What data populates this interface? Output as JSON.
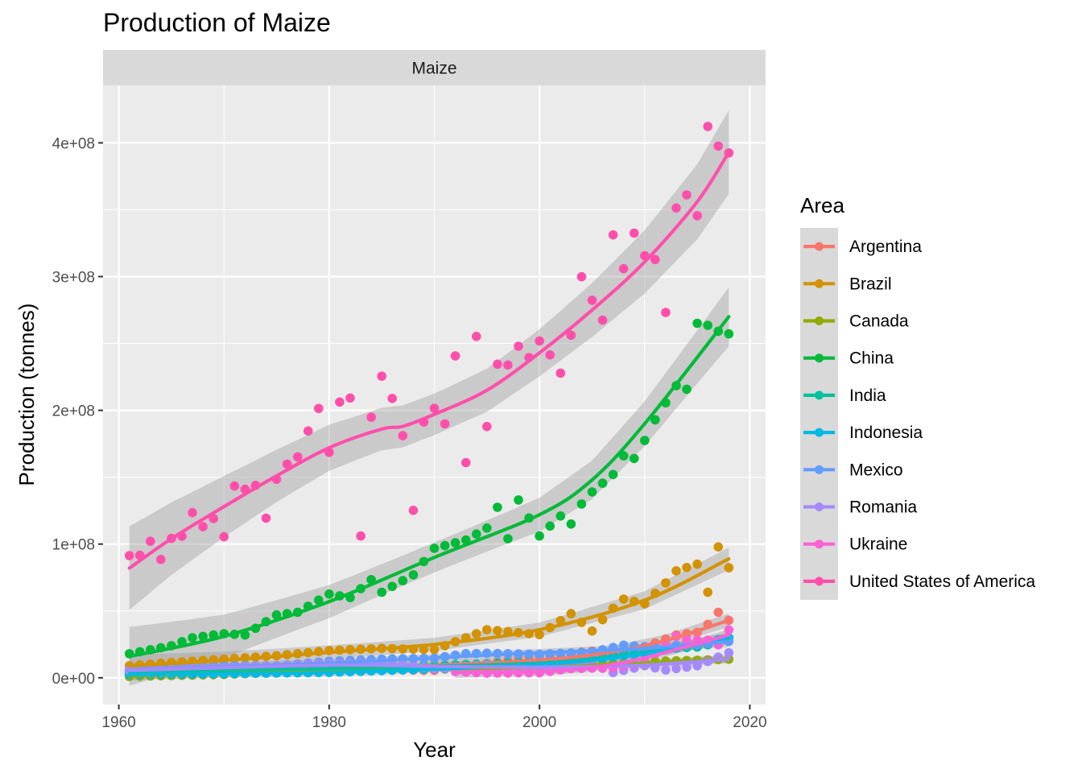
{
  "chart_data": {
    "type": "scatter",
    "title": "Production of Maize",
    "facet_label": "Maize",
    "xlabel": "Year",
    "ylabel": "Production (tonnes)",
    "xlim": [
      1958.5,
      2021.5
    ],
    "ylim": [
      -20000000,
      443000000
    ],
    "x_ticks": [
      1960,
      1980,
      2000,
      2020
    ],
    "x_tick_labels": [
      "1960",
      "1980",
      "2000",
      "2020"
    ],
    "y_ticks": [
      0,
      100000000,
      200000000,
      300000000,
      400000000
    ],
    "y_tick_labels": [
      "0e+00",
      "1e+08",
      "2e+08",
      "3e+08",
      "4e+08"
    ],
    "grid": true,
    "smoothing": "loess with confidence band",
    "legend": {
      "title": "Area",
      "position": "right"
    },
    "series": [
      {
        "name": "Argentina",
        "color": "#F8766D",
        "anchors": [
          [
            1961,
            5000000.0
          ],
          [
            1970,
            9500000.0
          ],
          [
            1980,
            6500000.0
          ],
          [
            1990,
            5500000.0
          ],
          [
            2000,
            16000000.0
          ],
          [
            2005,
            20000000.0
          ],
          [
            2010,
            23000000.0
          ],
          [
            2013,
            32000000.0
          ],
          [
            2015,
            34000000.0
          ],
          [
            2016,
            40000000.0
          ],
          [
            2017,
            49000000.0
          ],
          [
            2018,
            43000000.0
          ]
        ],
        "trend": [
          [
            1961,
            6000000.0
          ],
          [
            1980,
            7000000.0
          ],
          [
            1995,
            11000000.0
          ],
          [
            2005,
            17000000.0
          ],
          [
            2012,
            28000000.0
          ],
          [
            2018,
            43000000.0
          ]
        ]
      },
      {
        "name": "Brazil",
        "color": "#D39200",
        "anchors": [
          [
            1961,
            9000000.0
          ],
          [
            1965,
            11500000.0
          ],
          [
            1970,
            14000000.0
          ],
          [
            1975,
            16500000.0
          ],
          [
            1980,
            20400000.0
          ],
          [
            1985,
            22000000.0
          ],
          [
            1990,
            21000000.0
          ],
          [
            1993,
            30000000.0
          ],
          [
            1995,
            36000000.0
          ],
          [
            2000,
            32300000.0
          ],
          [
            2003,
            48000000.0
          ],
          [
            2005,
            35000000.0
          ],
          [
            2007,
            52000000.0
          ],
          [
            2008,
            58900000.0
          ],
          [
            2010,
            55400000.0
          ],
          [
            2012,
            71000000.0
          ],
          [
            2013,
            80000000.0
          ],
          [
            2015,
            85000000.0
          ],
          [
            2016,
            64000000.0
          ],
          [
            2017,
            97900000.0
          ],
          [
            2018,
            82300000.0
          ]
        ],
        "trend": [
          [
            1961,
            9000000.0
          ],
          [
            1970,
            13000000.0
          ],
          [
            1980,
            19000000.0
          ],
          [
            1990,
            25000000.0
          ],
          [
            2000,
            36000000.0
          ],
          [
            2010,
            58000000.0
          ],
          [
            2018,
            89000000.0
          ]
        ]
      },
      {
        "name": "Canada",
        "color": "#93AA00",
        "anchors": [
          [
            1961,
            1000000.0
          ],
          [
            1970,
            2500000.0
          ],
          [
            1980,
            5500000.0
          ],
          [
            1990,
            7000000.0
          ],
          [
            2000,
            7000000.0
          ],
          [
            2010,
            12000000.0
          ],
          [
            2018,
            13900000.0
          ]
        ],
        "trend": [
          [
            1961,
            1500000.0
          ],
          [
            1980,
            5500000.0
          ],
          [
            2000,
            8000000.0
          ],
          [
            2018,
            14000000.0
          ]
        ]
      },
      {
        "name": "China",
        "color": "#00BA38",
        "anchors": [
          [
            1961,
            18000000.0
          ],
          [
            1963,
            21000000.0
          ],
          [
            1965,
            24000000.0
          ],
          [
            1967,
            30000000.0
          ],
          [
            1970,
            33000000.0
          ],
          [
            1972,
            32000000.0
          ],
          [
            1975,
            47000000.0
          ],
          [
            1977,
            49000000.0
          ],
          [
            1980,
            62600000.0
          ],
          [
            1982,
            60000000.0
          ],
          [
            1984,
            73400000.0
          ],
          [
            1985,
            64000000.0
          ],
          [
            1988,
            77000000.0
          ],
          [
            1990,
            96800000.0
          ],
          [
            1993,
            103000000.0
          ],
          [
            1995,
            112000000.0
          ],
          [
            1996,
            127500000.0
          ],
          [
            1997,
            104000000.0
          ],
          [
            1998,
            133000000.0
          ],
          [
            2000,
            106000000.0
          ],
          [
            2002,
            121000000.0
          ],
          [
            2003,
            115000000.0
          ],
          [
            2004,
            130000000.0
          ],
          [
            2005,
            139000000.0
          ],
          [
            2007,
            152000000.0
          ],
          [
            2008,
            166000000.0
          ],
          [
            2009,
            164000000.0
          ],
          [
            2010,
            177500000.0
          ],
          [
            2011,
            192900000.0
          ],
          [
            2012,
            205600000.0
          ],
          [
            2013,
            218500000.0
          ],
          [
            2014,
            215800000.0
          ],
          [
            2015,
            265100000.0
          ],
          [
            2016,
            263600000.0
          ],
          [
            2017,
            259100000.0
          ],
          [
            2018,
            257200000.0
          ]
        ],
        "trend": [
          [
            1961,
            16000000.0
          ],
          [
            1970,
            31000000.0
          ],
          [
            1980,
            57000000.0
          ],
          [
            1990,
            90000000.0
          ],
          [
            2000,
            122000000.0
          ],
          [
            2005,
            148000000.0
          ],
          [
            2010,
            190000000.0
          ],
          [
            2018,
            270000000.0
          ]
        ]
      },
      {
        "name": "India",
        "color": "#00C19F",
        "anchors": [
          [
            1961,
            4000000.0
          ],
          [
            1970,
            7000000.0
          ],
          [
            1980,
            7000000.0
          ],
          [
            1990,
            9000000.0
          ],
          [
            2000,
            12000000.0
          ],
          [
            2010,
            21000000.0
          ],
          [
            2015,
            23000000.0
          ],
          [
            2018,
            28000000.0
          ]
        ],
        "trend": [
          [
            1961,
            4500000.0
          ],
          [
            1980,
            7000000.0
          ],
          [
            2000,
            11000000.0
          ],
          [
            2010,
            19000000.0
          ],
          [
            2018,
            29000000.0
          ]
        ]
      },
      {
        "name": "Indonesia",
        "color": "#00B9E3",
        "anchors": [
          [
            1961,
            2500000.0
          ],
          [
            1970,
            3000000.0
          ],
          [
            1980,
            4000000.0
          ],
          [
            1990,
            6700000.0
          ],
          [
            2000,
            9700000.0
          ],
          [
            2010,
            18300000.0
          ],
          [
            2018,
            30000000.0
          ]
        ],
        "trend": [
          [
            1961,
            2500000.0
          ],
          [
            1980,
            4000000.0
          ],
          [
            2000,
            10000000.0
          ],
          [
            2010,
            18000000.0
          ],
          [
            2018,
            30000000.0
          ]
        ]
      },
      {
        "name": "Mexico",
        "color": "#619CFF",
        "anchors": [
          [
            1961,
            6000000.0
          ],
          [
            1965,
            8000000.0
          ],
          [
            1970,
            9000000.0
          ],
          [
            1975,
            9000000.0
          ],
          [
            1980,
            12400000.0
          ],
          [
            1985,
            14000000.0
          ],
          [
            1990,
            14600000.0
          ],
          [
            1993,
            18100000.0
          ],
          [
            1995,
            18400000.0
          ],
          [
            2000,
            17600000.0
          ],
          [
            2005,
            19300000.0
          ],
          [
            2008,
            24400000.0
          ],
          [
            2010,
            23300000.0
          ],
          [
            2015,
            24700000.0
          ],
          [
            2018,
            27200000.0
          ]
        ],
        "trend": [
          [
            1961,
            6000000.0
          ],
          [
            1980,
            11000000.0
          ],
          [
            1995,
            17000000.0
          ],
          [
            2010,
            22000000.0
          ],
          [
            2018,
            27000000.0
          ]
        ]
      },
      {
        "name": "Romania",
        "color": "#A58AFF",
        "anchors": [
          [
            1961,
            5500000.0
          ],
          [
            1970,
            7500000.0
          ],
          [
            1980,
            11000000.0
          ],
          [
            1985,
            11000000.0
          ],
          [
            1990,
            6800000.0
          ],
          [
            1995,
            9900000.0
          ],
          [
            2000,
            4900000.0
          ],
          [
            2005,
            10400000.0
          ],
          [
            2007,
            3900000.0
          ],
          [
            2010,
            9000000.0
          ],
          [
            2012,
            5900000.0
          ],
          [
            2015,
            9000000.0
          ],
          [
            2018,
            18700000.0
          ]
        ],
        "trend": [
          [
            1961,
            5500000.0
          ],
          [
            1980,
            9500000.0
          ],
          [
            1990,
            8500000.0
          ],
          [
            2000,
            8000000.0
          ],
          [
            2010,
            9500000.0
          ],
          [
            2018,
            14000000.0
          ]
        ]
      },
      {
        "name": "Ukraine",
        "color": "#FB61D7",
        "anchors": [
          [
            1992,
            4700000.0
          ],
          [
            1995,
            3400000.0
          ],
          [
            2000,
            3800000.0
          ],
          [
            2003,
            6900000.0
          ],
          [
            2005,
            7200000.0
          ],
          [
            2007,
            7400000.0
          ],
          [
            2010,
            11900000.0
          ],
          [
            2013,
            30900000.0
          ],
          [
            2014,
            28500000.0
          ],
          [
            2016,
            28100000.0
          ],
          [
            2017,
            24700000.0
          ],
          [
            2018,
            35800000.0
          ]
        ],
        "trend": [
          [
            1992,
            4000000.0
          ],
          [
            2000,
            4500000.0
          ],
          [
            2005,
            7500000.0
          ],
          [
            2010,
            15000000.0
          ],
          [
            2018,
            32000000.0
          ]
        ]
      },
      {
        "name": "United States of America",
        "color": "#FF4FAB",
        "points": [
          [
            1961,
            91400000.0
          ],
          [
            1962,
            91600000.0
          ],
          [
            1963,
            102100000.0
          ],
          [
            1964,
            88500000.0
          ],
          [
            1965,
            104200000.0
          ],
          [
            1966,
            105900000.0
          ],
          [
            1967,
            123500000.0
          ],
          [
            1968,
            113000000.0
          ],
          [
            1969,
            119100000.0
          ],
          [
            1970,
            105500000.0
          ],
          [
            1971,
            143400000.0
          ],
          [
            1972,
            141000000.0
          ],
          [
            1973,
            143900000.0
          ],
          [
            1974,
            119400000.0
          ],
          [
            1975,
            148400000.0
          ],
          [
            1976,
            159800000.0
          ],
          [
            1977,
            165200000.0
          ],
          [
            1978,
            184600000.0
          ],
          [
            1979,
            201400000.0
          ],
          [
            1980,
            168600000.0
          ],
          [
            1981,
            206200000.0
          ],
          [
            1982,
            209200000.0
          ],
          [
            1983,
            106000000.0
          ],
          [
            1984,
            194900000.0
          ],
          [
            1985,
            225500000.0
          ],
          [
            1986,
            208900000.0
          ],
          [
            1987,
            181100000.0
          ],
          [
            1988,
            125200000.0
          ],
          [
            1989,
            191300000.0
          ],
          [
            1990,
            201500000.0
          ],
          [
            1991,
            189900000.0
          ],
          [
            1992,
            240700000.0
          ],
          [
            1993,
            160900000.0
          ],
          [
            1994,
            255300000.0
          ],
          [
            1995,
            187900000.0
          ],
          [
            1996,
            234500000.0
          ],
          [
            1997,
            233900000.0
          ],
          [
            1998,
            247900000.0
          ],
          [
            1999,
            239500000.0
          ],
          [
            2000,
            251900000.0
          ],
          [
            2001,
            241400000.0
          ],
          [
            2002,
            227800000.0
          ],
          [
            2003,
            256200000.0
          ],
          [
            2004,
            299900000.0
          ],
          [
            2005,
            282300000.0
          ],
          [
            2006,
            267500000.0
          ],
          [
            2007,
            331200000.0
          ],
          [
            2008,
            305900000.0
          ],
          [
            2009,
            332500000.0
          ],
          [
            2010,
            315600000.0
          ],
          [
            2011,
            312800000.0
          ],
          [
            2012,
            273200000.0
          ],
          [
            2013,
            351300000.0
          ],
          [
            2014,
            361100000.0
          ],
          [
            2015,
            345500000.0
          ],
          [
            2016,
            412300000.0
          ],
          [
            2017,
            397600000.0
          ],
          [
            2018,
            392500000.0
          ]
        ],
        "trend": [
          [
            1961,
            82000000.0
          ],
          [
            1965,
            104000000.0
          ],
          [
            1970,
            128000000.0
          ],
          [
            1975,
            151000000.0
          ],
          [
            1980,
            172000000.0
          ],
          [
            1985,
            186000000.0
          ],
          [
            1987,
            188000000.0
          ],
          [
            1990,
            197000000.0
          ],
          [
            1995,
            215000000.0
          ],
          [
            2000,
            243000000.0
          ],
          [
            2005,
            275000000.0
          ],
          [
            2010,
            311000000.0
          ],
          [
            2015,
            356000000.0
          ],
          [
            2018,
            393000000.0
          ]
        ]
      }
    ]
  }
}
